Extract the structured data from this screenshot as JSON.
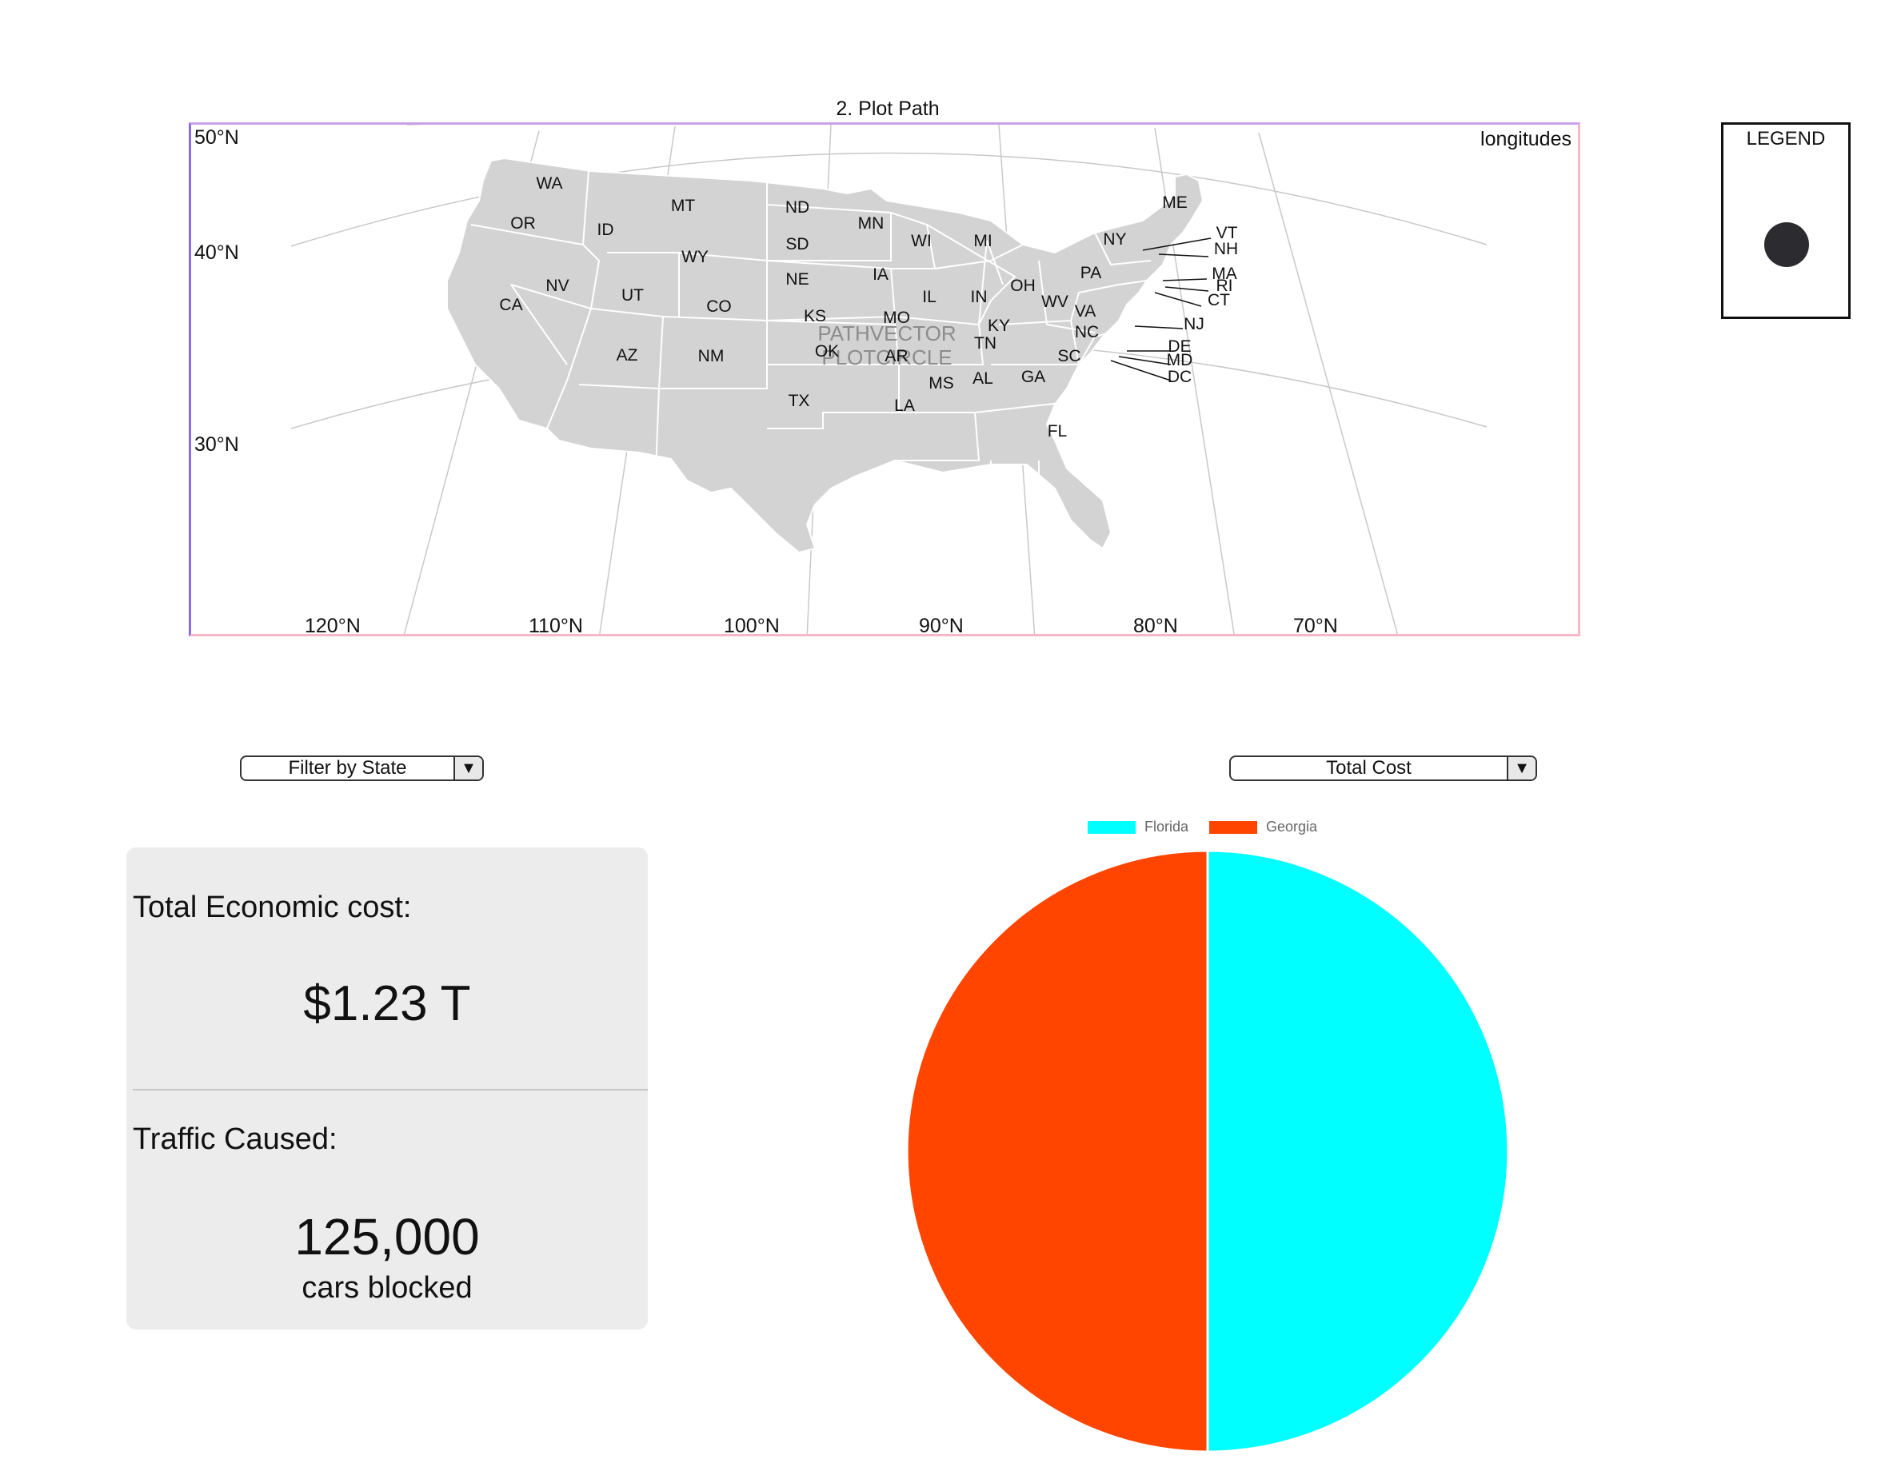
{
  "map": {
    "title": "2. Plot Path",
    "corner_label": "longitudes",
    "lat_labels": [
      "50°N",
      "40°N",
      "30°N"
    ],
    "lon_labels": [
      "120°N",
      "110°N",
      "100°N",
      "90°N",
      "80°N",
      "70°N"
    ],
    "watermark": [
      "PATHVECTOR",
      "PLOTCIRCLE"
    ],
    "states": [
      "WA",
      "OR",
      "CA",
      "ID",
      "NV",
      "MT",
      "WY",
      "UT",
      "AZ",
      "CO",
      "NM",
      "ND",
      "SD",
      "NE",
      "KS",
      "OK",
      "TX",
      "MN",
      "IA",
      "MO",
      "AR",
      "LA",
      "WI",
      "IL",
      "MI",
      "IN",
      "OH",
      "KY",
      "TN",
      "MS",
      "AL",
      "GA",
      "FL",
      "SC",
      "NC",
      "VA",
      "WV",
      "PA",
      "NY",
      "ME",
      "VT",
      "NH",
      "MA",
      "RI",
      "CT",
      "NJ",
      "DE",
      "MD",
      "DC"
    ],
    "colors": {
      "land": "#d3d3d3",
      "border": "#ffffff",
      "graticule": "#c8c8c8"
    }
  },
  "legend": {
    "title": "LEGEND",
    "marker_color": "#2c2c30"
  },
  "filter": {
    "selected": "Filter by State"
  },
  "metric": {
    "selected": "Total Cost"
  },
  "stats": {
    "economic_label": "Total Economic cost:",
    "economic_value": "$1.23 T",
    "traffic_label": "Traffic Caused:",
    "traffic_value": "125,000",
    "traffic_unit": "cars blocked"
  },
  "chart_data": {
    "type": "pie",
    "categories": [
      "Florida",
      "Georgia"
    ],
    "values": [
      50,
      50
    ],
    "colors": [
      "#00ffff",
      "#ff4500"
    ],
    "legend_position": "top"
  }
}
